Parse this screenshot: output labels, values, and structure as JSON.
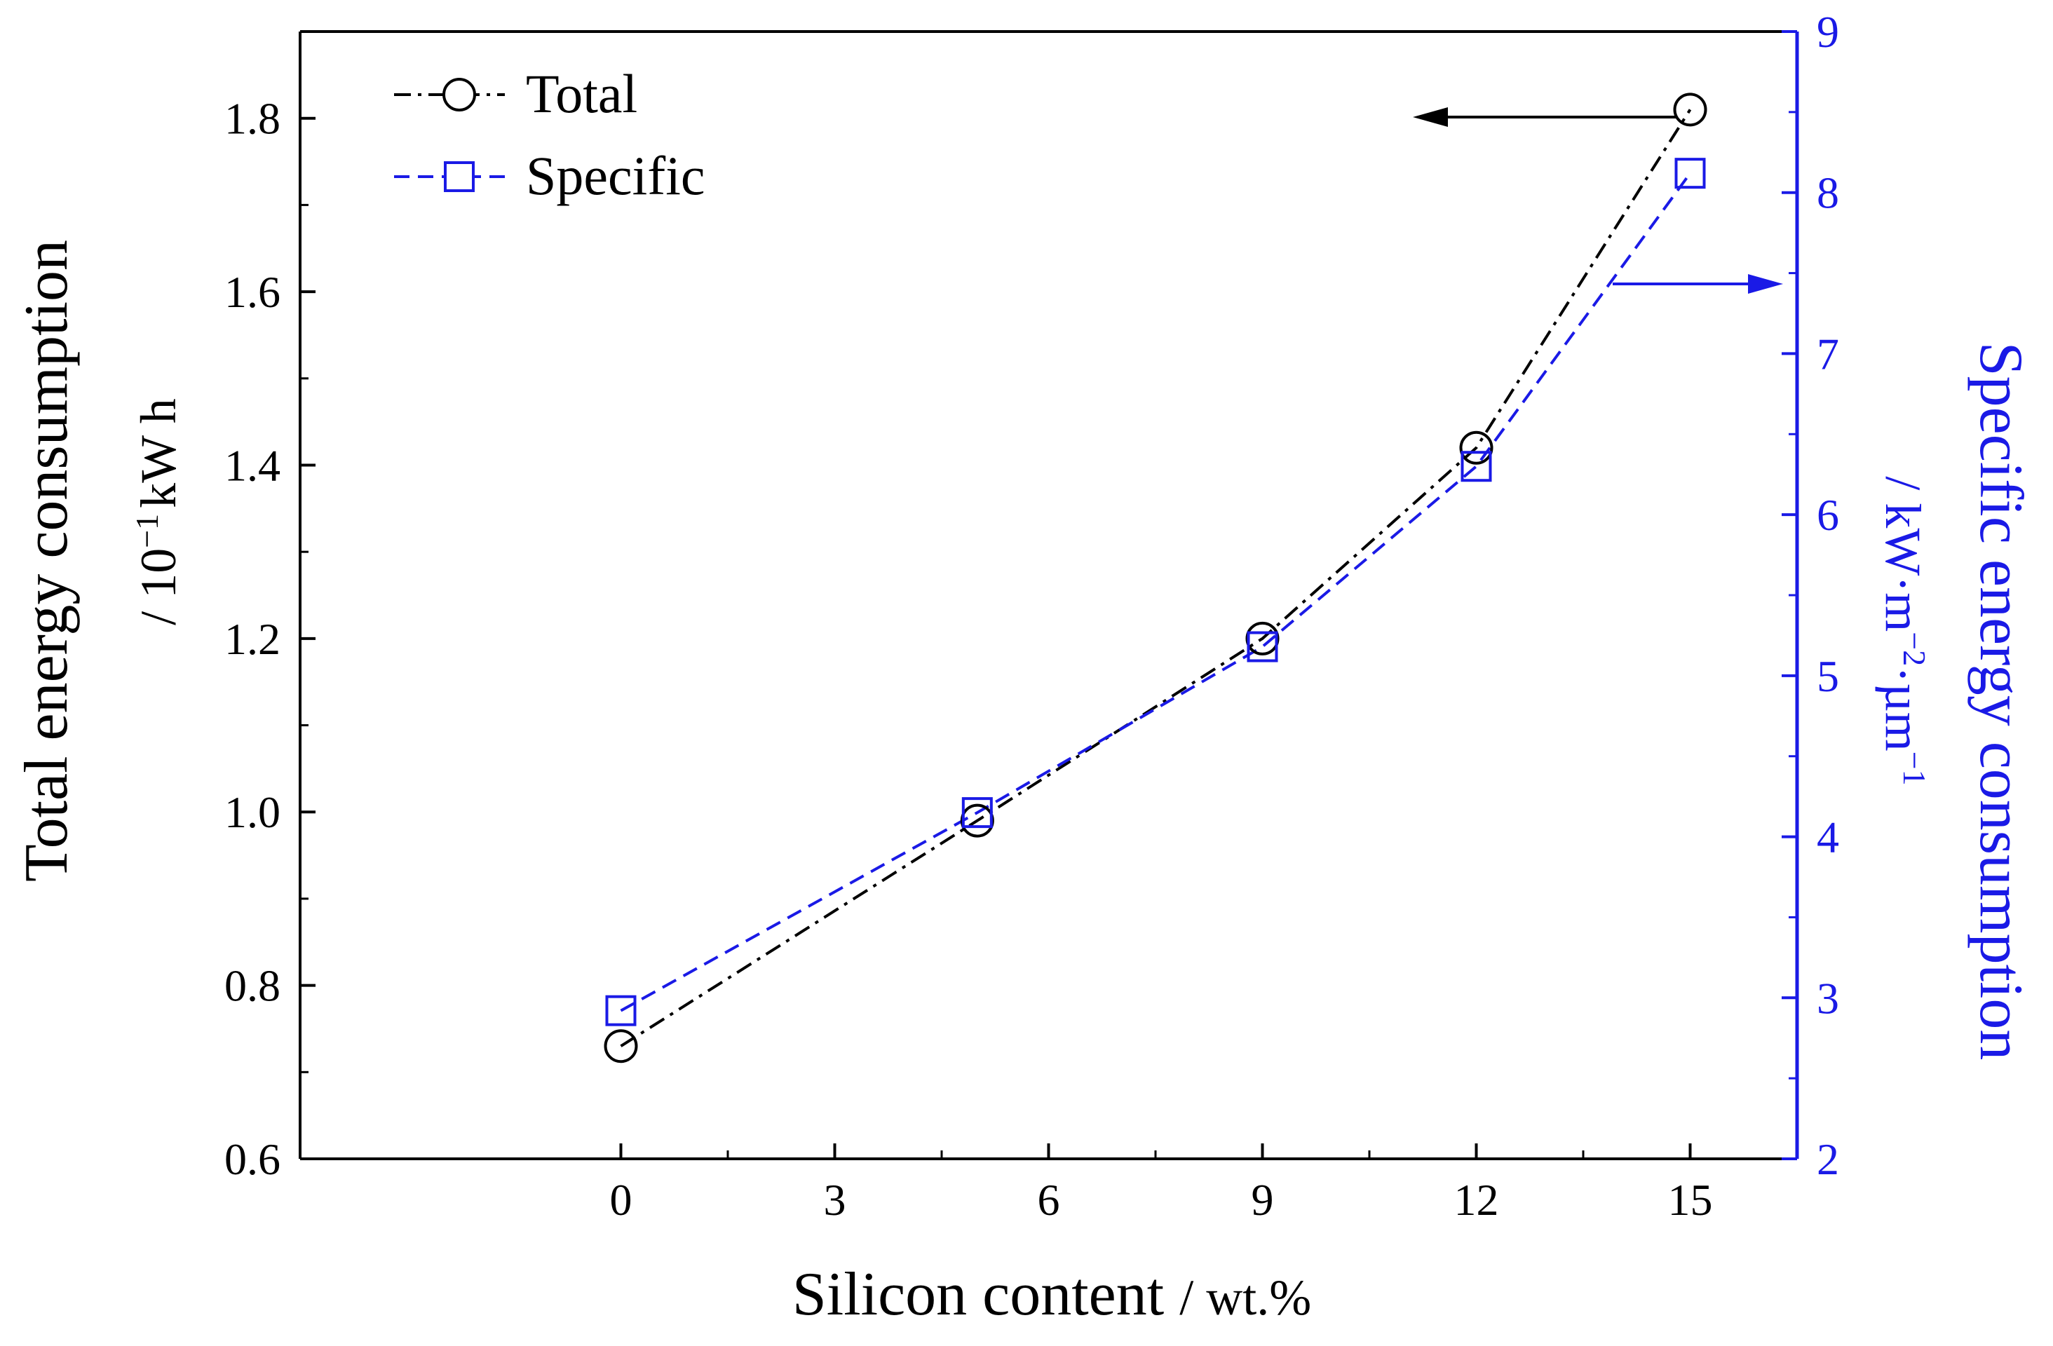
{
  "chart_data": {
    "type": "line",
    "title": "",
    "x": [
      0,
      5,
      9,
      12,
      15
    ],
    "xlim": [
      -4.5,
      16.5
    ],
    "xticks": [
      "0",
      "3",
      "6",
      "9",
      "12",
      "15"
    ],
    "xlabel": "Silicon content",
    "xlabel_unit": "/ wt.%",
    "ylabel": "Total energy consumption",
    "ylabel_unit_prefix": "/ 10",
    "ylabel_unit_exp": "−1",
    "ylabel_unit_suffix": "kW h",
    "ylim": [
      0.6,
      1.9
    ],
    "yticks": [
      "0.6",
      "0.8",
      "1.0",
      "1.2",
      "1.4",
      "1.6",
      "1.8"
    ],
    "y2label": "Specific energy consumption",
    "y2label_unit_a": "/ kW·m",
    "y2label_unit_exp1": "−2",
    "y2label_unit_b": "·µm",
    "y2label_unit_exp2": "−1",
    "y2lim": [
      2,
      9
    ],
    "y2ticks": [
      "2",
      "3",
      "4",
      "5",
      "6",
      "7",
      "8",
      "9"
    ],
    "series": [
      {
        "name": "Total",
        "axis": "left",
        "marker": "circle",
        "line": "dash-dot",
        "color": "#000000",
        "values": [
          0.73,
          0.99,
          1.2,
          1.42,
          1.81
        ]
      },
      {
        "name": "Specific",
        "axis": "right",
        "marker": "square",
        "line": "dashed",
        "color": "#1a1ae6",
        "values": [
          2.92,
          4.15,
          5.18,
          6.3,
          8.12
        ]
      }
    ],
    "legend_position": "top-left",
    "annotations": [
      {
        "type": "arrow",
        "points_to": "left axis",
        "color": "#000000"
      },
      {
        "type": "arrow",
        "points_to": "right axis",
        "color": "#1a1ae6"
      }
    ],
    "right_axis_color": "#1a1ae6"
  }
}
